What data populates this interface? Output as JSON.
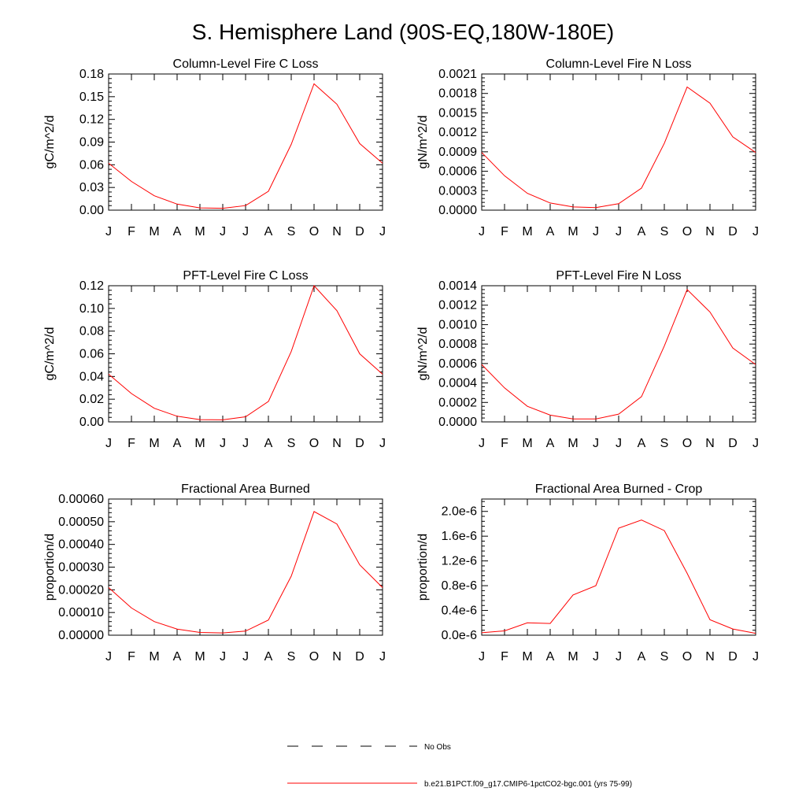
{
  "figure": {
    "title": "S. Hemisphere Land (90S-EQ,180W-180E)"
  },
  "months": [
    "J",
    "F",
    "M",
    "A",
    "M",
    "J",
    "J",
    "A",
    "S",
    "O",
    "N",
    "D",
    "J"
  ],
  "legend": {
    "items": [
      {
        "label": "No Obs",
        "color": "#000000",
        "style": "dashed"
      },
      {
        "label": "b.e21.B1PCT.f09_g17.CMIP6-1pctCO2-bgc.001 (yrs 75-99)",
        "color": "#ff0000",
        "style": "solid"
      }
    ]
  },
  "chart_data": [
    {
      "type": "line",
      "title": "Column-Level Fire C Loss",
      "ylabel": "gC/m^2/d",
      "ylim": [
        0,
        0.18
      ],
      "yticks": [
        "0.00",
        "0.03",
        "0.06",
        "0.09",
        "0.12",
        "0.15",
        "0.18"
      ],
      "series": [
        {
          "color": "#ff0000",
          "values": [
            0.062,
            0.038,
            0.019,
            0.008,
            0.003,
            0.0025,
            0.006,
            0.025,
            0.087,
            0.167,
            0.14,
            0.088,
            0.062
          ]
        }
      ]
    },
    {
      "type": "line",
      "title": "Column-Level Fire N Loss",
      "ylabel": "gN/m^2/d",
      "ylim": [
        0,
        0.0021
      ],
      "yticks": [
        "0.0000",
        "0.0003",
        "0.0006",
        "0.0009",
        "0.0012",
        "0.0015",
        "0.0018",
        "0.0021"
      ],
      "series": [
        {
          "color": "#ff0000",
          "values": [
            0.00089,
            0.00053,
            0.00026,
            0.00011,
            5e-05,
            4e-05,
            0.0001,
            0.00034,
            0.00103,
            0.0019,
            0.00165,
            0.00113,
            0.00089
          ]
        }
      ]
    },
    {
      "type": "line",
      "title": "PFT-Level Fire C Loss",
      "ylabel": "gC/m^2/d",
      "ylim": [
        0,
        0.12
      ],
      "yticks": [
        "0.00",
        "0.02",
        "0.04",
        "0.06",
        "0.08",
        "0.10",
        "0.12"
      ],
      "series": [
        {
          "color": "#ff0000",
          "values": [
            0.042,
            0.025,
            0.012,
            0.005,
            0.002,
            0.0018,
            0.0045,
            0.018,
            0.062,
            0.12,
            0.098,
            0.06,
            0.042
          ]
        }
      ]
    },
    {
      "type": "line",
      "title": "PFT-Level Fire N Loss",
      "ylabel": "gN/m^2/d",
      "ylim": [
        0,
        0.0014
      ],
      "yticks": [
        "0.0000",
        "0.0002",
        "0.0004",
        "0.0006",
        "0.0008",
        "0.0010",
        "0.0012",
        "0.0014"
      ],
      "series": [
        {
          "color": "#ff0000",
          "values": [
            0.00059,
            0.00035,
            0.00016,
            7e-05,
            3e-05,
            3e-05,
            8e-05,
            0.00026,
            0.00078,
            0.00136,
            0.00113,
            0.00076,
            0.00059
          ]
        }
      ]
    },
    {
      "type": "line",
      "title": "Fractional Area Burned",
      "ylabel": "proportion/d",
      "ylim": [
        0,
        0.0006
      ],
      "yticks": [
        "0.00000",
        "0.00010",
        "0.00020",
        "0.00030",
        "0.00040",
        "0.00050",
        "0.00060"
      ],
      "series": [
        {
          "color": "#ff0000",
          "values": [
            0.00021,
            0.00012,
            6e-05,
            2.7e-05,
            1.2e-05,
            1e-05,
            1.8e-05,
            6.7e-05,
            0.00026,
            0.000545,
            0.00049,
            0.00031,
            0.00021
          ]
        }
      ]
    },
    {
      "type": "line",
      "title": "Fractional Area Burned - Crop",
      "ylabel": "proportion/d",
      "ylim": [
        0,
        2.2e-06
      ],
      "yticks": [
        "0.0e-6",
        "0.4e-6",
        "0.8e-6",
        "1.2e-6",
        "1.6e-6",
        "2.0e-6"
      ],
      "ytick_values": [
        0,
        4e-07,
        8e-07,
        1.2e-06,
        1.6e-06,
        2e-06
      ],
      "series": [
        {
          "color": "#ff0000",
          "values": [
            4e-08,
            7e-08,
            2e-07,
            1.9e-07,
            6.5e-07,
            8e-07,
            1.73e-06,
            1.86e-06,
            1.69e-06,
            1e-06,
            2.5e-07,
            1e-07,
            3e-08
          ]
        }
      ]
    }
  ]
}
